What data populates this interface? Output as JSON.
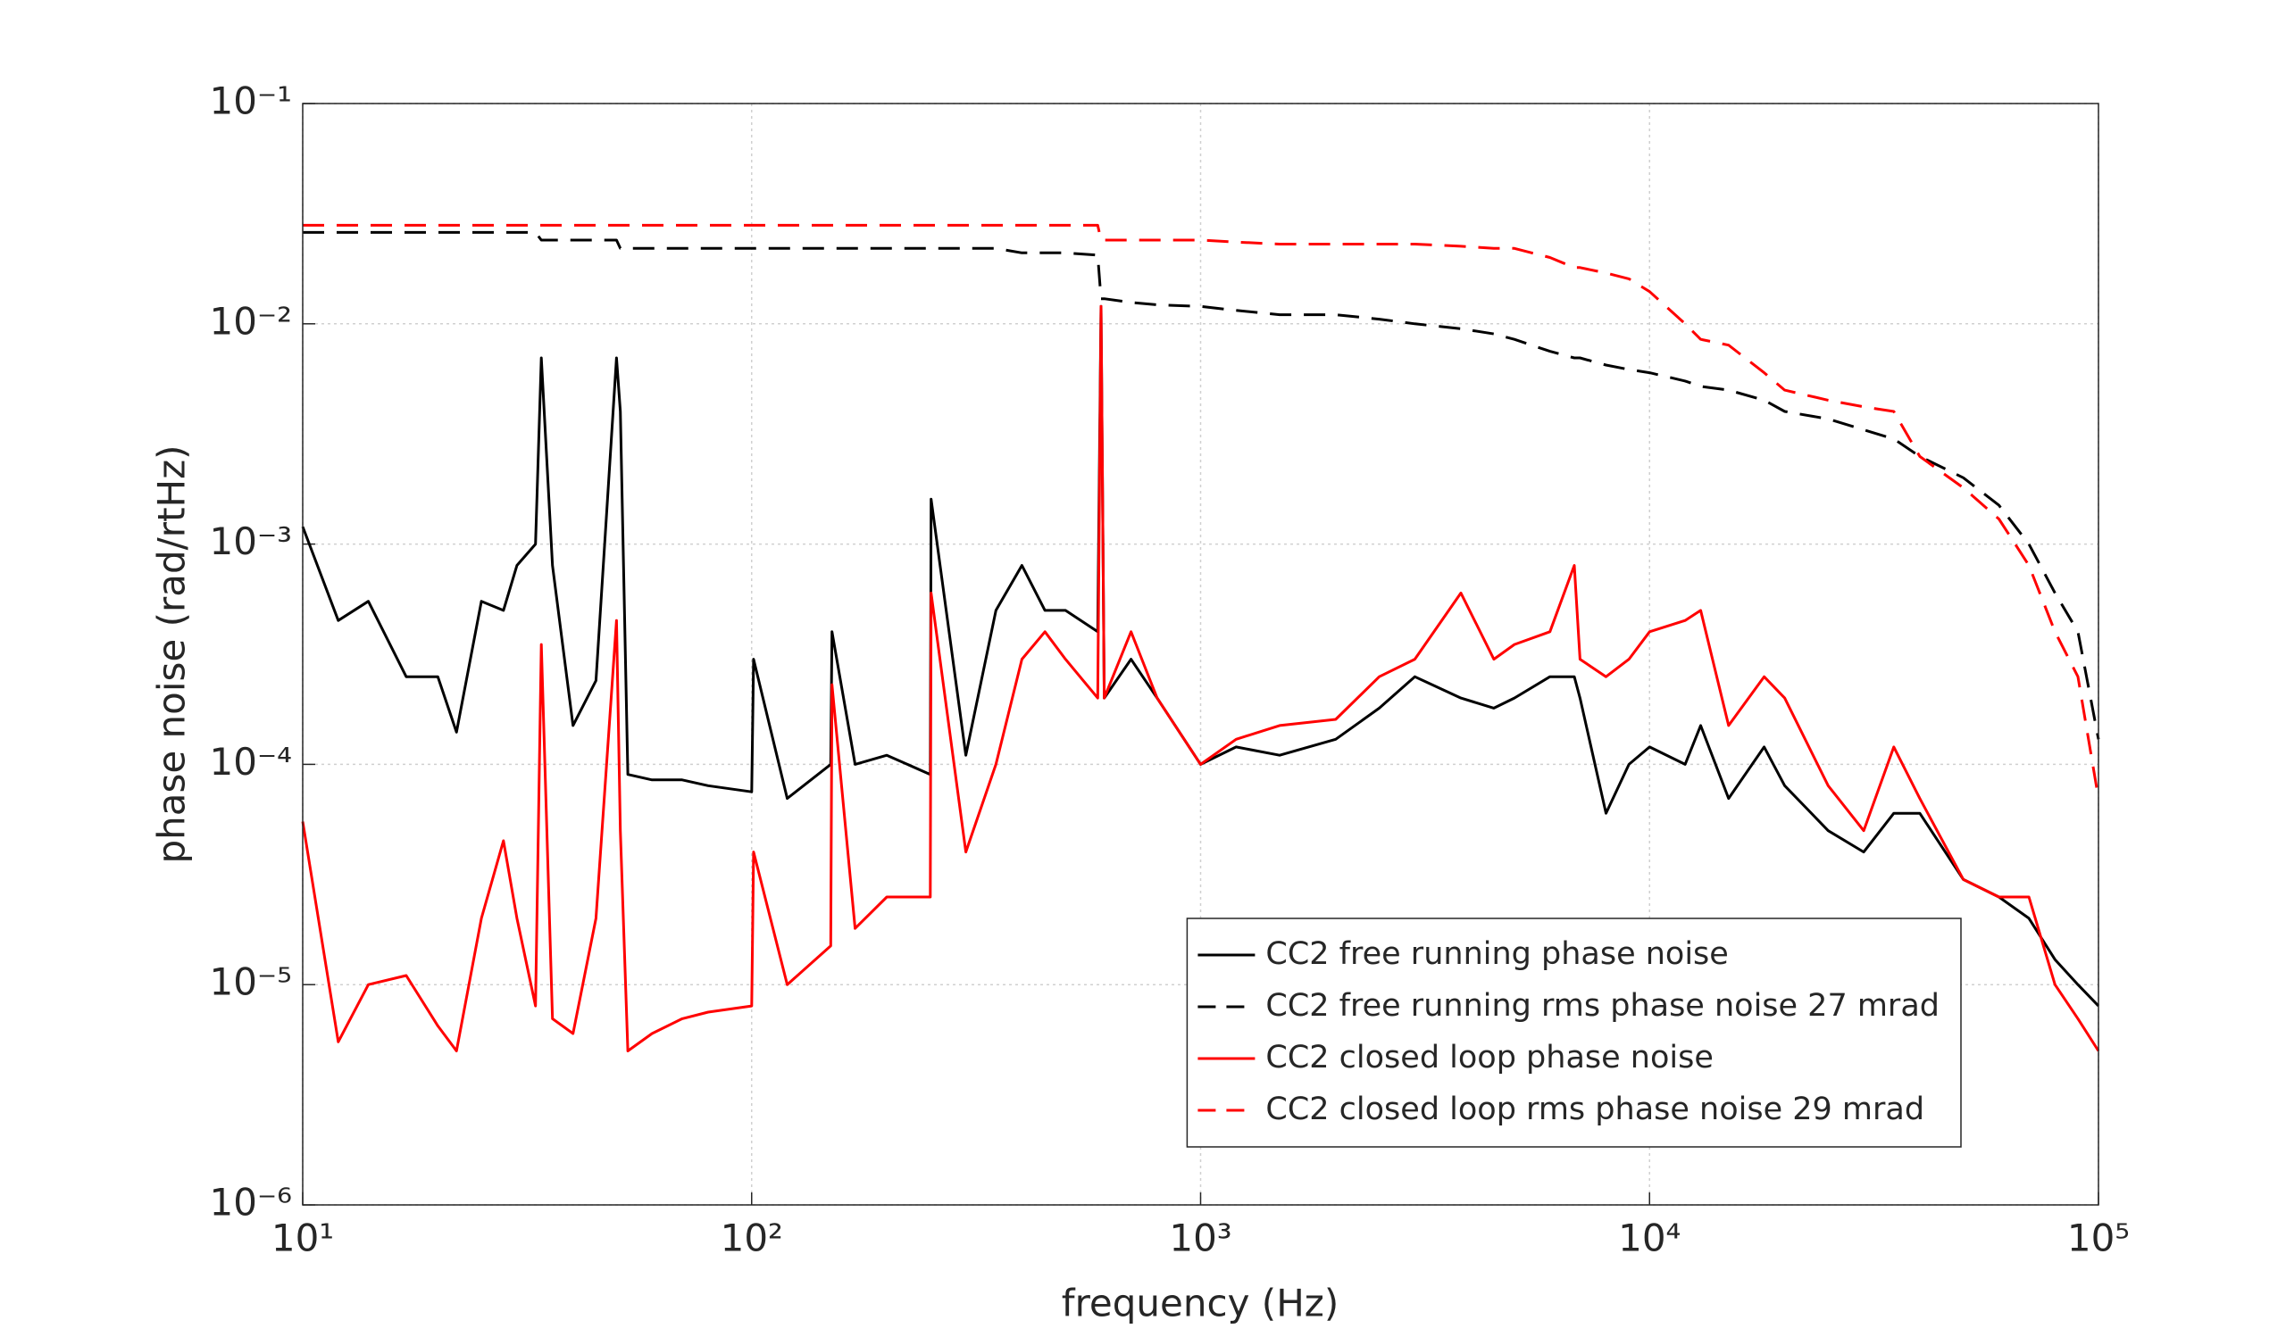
{
  "chart_data": {
    "type": "line",
    "xlabel": "frequency (Hz)",
    "ylabel": "phase noise (rad/rtHz)",
    "xscale": "log",
    "yscale": "log",
    "grid": true,
    "legend": "lower right",
    "xlim": [
      10,
      100000
    ],
    "xticks": [
      {
        "value": 10,
        "label": "10¹"
      },
      {
        "value": 100,
        "label": "10²"
      },
      {
        "value": 1000,
        "label": "10³"
      },
      {
        "value": 10000,
        "label": "10⁴"
      },
      {
        "value": 100000,
        "label": "10⁵"
      }
    ],
    "ylim": [
      1e-06,
      0.1
    ],
    "yticks": [
      {
        "value": 1e-06,
        "label": "10⁻⁶"
      },
      {
        "value": 1e-05,
        "label": "10⁻⁵"
      },
      {
        "value": 0.0001,
        "label": "10⁻⁴"
      },
      {
        "value": 0.001,
        "label": "10⁻³"
      },
      {
        "value": 0.01,
        "label": "10⁻²"
      },
      {
        "value": 0.1,
        "label": "10⁻¹"
      }
    ],
    "x": [
      10,
      12,
      14,
      17,
      20,
      22,
      25,
      28,
      30,
      33,
      34,
      36,
      40,
      45,
      50,
      51,
      53,
      60,
      70,
      80,
      100,
      101,
      120,
      150,
      151,
      170,
      200,
      250,
      251,
      300,
      350,
      400,
      450,
      500,
      590,
      600,
      610,
      700,
      800,
      1000,
      1200,
      1500,
      2000,
      2500,
      3000,
      3800,
      4500,
      5000,
      6000,
      6800,
      7000,
      8000,
      9000,
      10000,
      12000,
      13000,
      15000,
      18000,
      20000,
      25000,
      30000,
      35000,
      40000,
      50000,
      60000,
      70000,
      80000,
      90000,
      100000
    ],
    "series": [
      {
        "name": "CC2 free running phase noise",
        "color": "#000000",
        "linestyle": "solid",
        "values": [
          0.0012,
          0.00045,
          0.00055,
          0.00025,
          0.00025,
          0.00014,
          0.00055,
          0.0005,
          0.0008,
          0.001,
          0.007,
          0.0008,
          0.00015,
          0.00024,
          0.007,
          0.004,
          9e-05,
          8.5e-05,
          8.5e-05,
          8e-05,
          7.5e-05,
          0.0003,
          7e-05,
          0.0001,
          0.0004,
          0.0001,
          0.00011,
          9e-05,
          0.0016,
          0.00011,
          0.0005,
          0.0008,
          0.0005,
          0.0005,
          0.0004,
          0.012,
          0.0002,
          0.0003,
          0.0002,
          0.0001,
          0.00012,
          0.00011,
          0.00013,
          0.00018,
          0.00025,
          0.0002,
          0.00018,
          0.0002,
          0.00025,
          0.00025,
          0.0002,
          6e-05,
          0.0001,
          0.00012,
          0.0001,
          0.00015,
          7e-05,
          0.00012,
          8e-05,
          5e-05,
          4e-05,
          6e-05,
          6e-05,
          3e-05,
          2.5e-05,
          2e-05,
          1.3e-05,
          1e-05,
          8e-06
        ]
      },
      {
        "name": "CC2 free running rms phase noise 27 mrad",
        "color": "#000000",
        "linestyle": "dashed",
        "values": [
          0.026,
          0.026,
          0.026,
          0.026,
          0.026,
          0.026,
          0.026,
          0.026,
          0.026,
          0.026,
          0.024,
          0.024,
          0.024,
          0.024,
          0.024,
          0.022,
          0.022,
          0.022,
          0.022,
          0.022,
          0.022,
          0.022,
          0.022,
          0.022,
          0.022,
          0.022,
          0.022,
          0.022,
          0.022,
          0.022,
          0.022,
          0.021,
          0.021,
          0.021,
          0.0205,
          0.013,
          0.013,
          0.0125,
          0.0122,
          0.012,
          0.0115,
          0.011,
          0.011,
          0.0105,
          0.01,
          0.0095,
          0.009,
          0.0085,
          0.0075,
          0.007,
          0.007,
          0.0065,
          0.0062,
          0.006,
          0.0055,
          0.0052,
          0.005,
          0.0045,
          0.004,
          0.0037,
          0.0033,
          0.003,
          0.0025,
          0.002,
          0.0015,
          0.001,
          0.0006,
          0.0004,
          0.00013
        ]
      },
      {
        "name": "CC2 closed loop phase noise",
        "color": "#ff0000",
        "linestyle": "solid",
        "values": [
          5.5e-05,
          5.5e-06,
          1e-05,
          1.1e-05,
          6.5e-06,
          5e-06,
          2e-05,
          4.5e-05,
          2e-05,
          8e-06,
          0.00035,
          7e-06,
          6e-06,
          2e-05,
          0.00045,
          5e-05,
          5e-06,
          6e-06,
          7e-06,
          7.5e-06,
          8e-06,
          4e-05,
          1e-05,
          1.5e-05,
          0.00023,
          1.8e-05,
          2.5e-05,
          2.5e-05,
          0.0006,
          4e-05,
          0.0001,
          0.0003,
          0.0004,
          0.0003,
          0.0002,
          0.012,
          0.0002,
          0.0004,
          0.0002,
          0.0001,
          0.00013,
          0.00015,
          0.00016,
          0.00025,
          0.0003,
          0.0006,
          0.0003,
          0.00035,
          0.0004,
          0.0008,
          0.0003,
          0.00025,
          0.0003,
          0.0004,
          0.00045,
          0.0005,
          0.00015,
          0.00025,
          0.0002,
          8e-05,
          5e-05,
          0.00012,
          7e-05,
          3e-05,
          2.5e-05,
          2.5e-05,
          1e-05,
          7e-06,
          5e-06
        ]
      },
      {
        "name": "CC2 closed loop rms phase noise 29 mrad",
        "color": "#ff0000",
        "linestyle": "dashed",
        "values": [
          0.028,
          0.028,
          0.028,
          0.028,
          0.028,
          0.028,
          0.028,
          0.028,
          0.028,
          0.028,
          0.028,
          0.028,
          0.028,
          0.028,
          0.028,
          0.028,
          0.028,
          0.028,
          0.028,
          0.028,
          0.028,
          0.028,
          0.028,
          0.028,
          0.028,
          0.028,
          0.028,
          0.028,
          0.028,
          0.028,
          0.028,
          0.028,
          0.028,
          0.028,
          0.028,
          0.024,
          0.024,
          0.024,
          0.024,
          0.024,
          0.0235,
          0.023,
          0.023,
          0.023,
          0.023,
          0.0225,
          0.022,
          0.022,
          0.02,
          0.018,
          0.018,
          0.017,
          0.016,
          0.014,
          0.01,
          0.0085,
          0.008,
          0.006,
          0.005,
          0.0045,
          0.0042,
          0.004,
          0.0025,
          0.0018,
          0.0013,
          0.0008,
          0.0004,
          0.00025,
          7e-05
        ]
      }
    ]
  }
}
